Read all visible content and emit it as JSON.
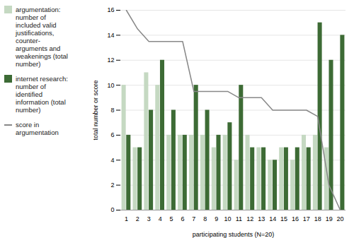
{
  "chart_data": {
    "type": "bar",
    "xlabel": "participating students (N=20)",
    "ylabel": "total number or score",
    "categories": [
      "1",
      "2",
      "3",
      "4",
      "5",
      "6",
      "7",
      "8",
      "9",
      "10",
      "11",
      "12",
      "13",
      "14",
      "15",
      "16",
      "17",
      "18",
      "19",
      "20"
    ],
    "series": [
      {
        "name": "argumentation:\nnumber of\nincluded valid\njustifications,\ncounter-\narguments and\nweakenings (total\nnumber)",
        "color": "#c5d9c2",
        "type": "bar",
        "values": [
          10,
          5,
          11,
          10,
          6,
          6,
          6,
          6,
          5,
          6,
          4,
          6,
          5,
          4,
          5,
          4,
          6,
          6,
          5,
          0
        ]
      },
      {
        "name": "internet research:\nnumber of\nidentified\ninformation (total\nnumber)",
        "color": "#3d6b35",
        "type": "bar",
        "values": [
          6,
          5,
          8,
          12,
          8,
          6,
          10,
          8,
          6,
          7,
          10,
          5,
          5,
          4,
          5,
          5,
          5,
          15,
          12,
          14
        ]
      },
      {
        "name": "score in\nargumentation",
        "color": "#888888",
        "type": "line",
        "values": [
          16,
          14.5,
          13.5,
          13.5,
          13.5,
          13.5,
          9.5,
          9.5,
          9.5,
          9.5,
          9.0,
          9.0,
          9.0,
          8.0,
          8.0,
          8.0,
          8.0,
          7.5,
          2.0,
          0
        ]
      }
    ],
    "ylim": [
      0,
      16
    ],
    "yticks": [
      0,
      2,
      4,
      6,
      8,
      10,
      12,
      14,
      16
    ],
    "grid": true
  }
}
